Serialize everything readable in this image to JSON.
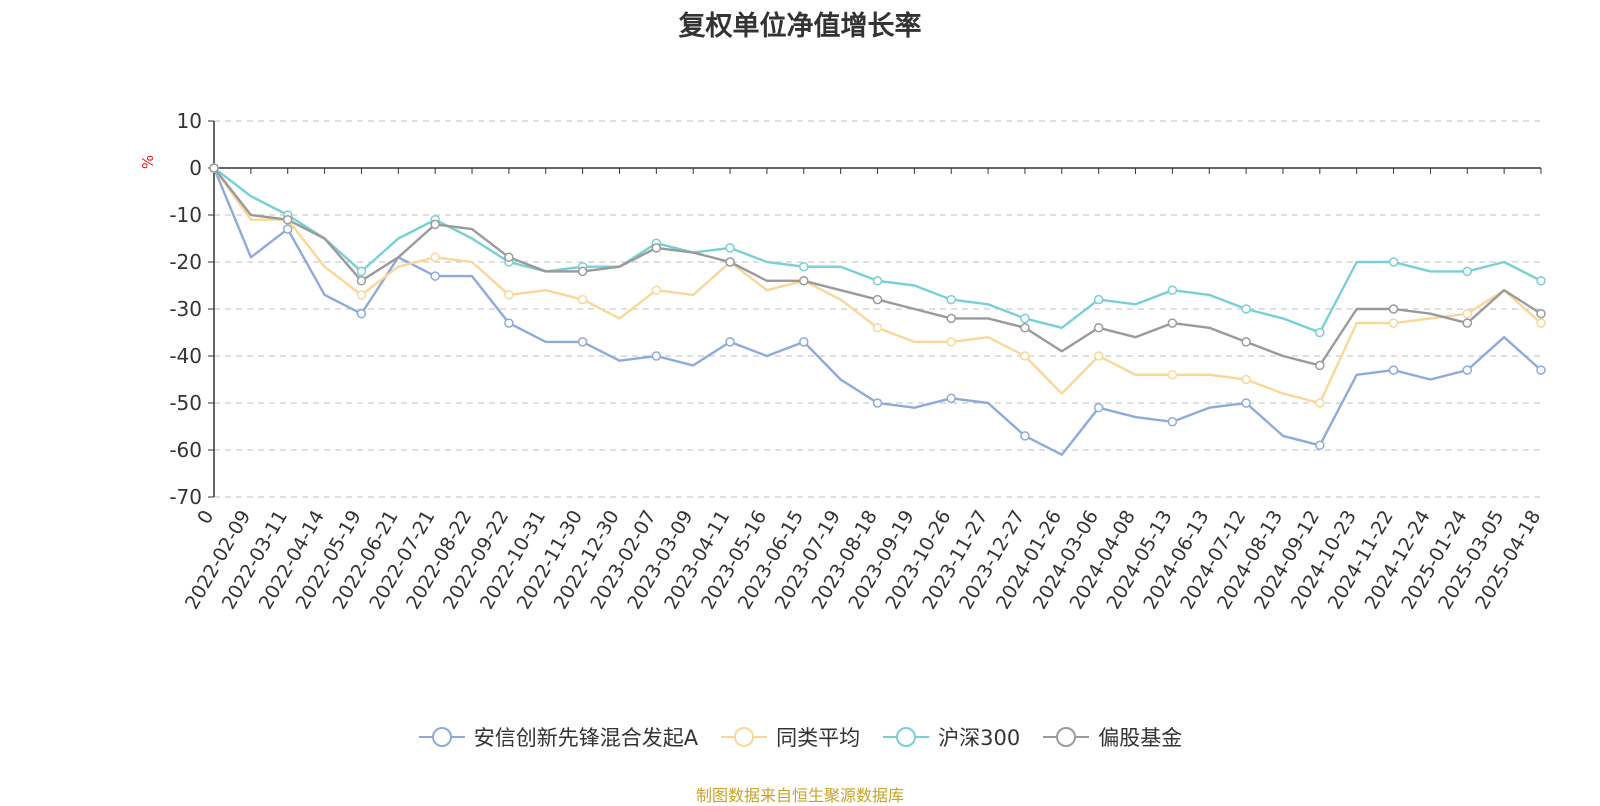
{
  "chart_data": {
    "type": "line",
    "title": "复权单位净值增长率",
    "ylabel": "%",
    "ylim": [
      -70,
      10
    ],
    "yticks": [
      10,
      0,
      -10,
      -20,
      -30,
      -40,
      -50,
      -60,
      -70
    ],
    "grid": true,
    "legend_position": "bottom",
    "x_tick_labels": [
      "0",
      "2022-02-09",
      "2022-03-11",
      "2022-04-14",
      "2022-05-19",
      "2022-06-21",
      "2022-07-21",
      "2022-08-22",
      "2022-09-22",
      "2022-10-31",
      "2022-11-30",
      "2022-12-30",
      "2023-02-07",
      "2023-03-09",
      "2023-04-11",
      "2023-05-16",
      "2023-06-15",
      "2023-07-19",
      "2023-08-18",
      "2023-09-19",
      "2023-10-26",
      "2023-11-27",
      "2023-12-27",
      "2024-01-26",
      "2024-03-06",
      "2024-04-08",
      "2024-05-13",
      "2024-06-13",
      "2024-07-12",
      "2024-08-13",
      "2024-09-12",
      "2024-10-23",
      "2024-11-22",
      "2024-12-24",
      "2025-01-24",
      "2025-03-05",
      "2025-04-18"
    ],
    "series": [
      {
        "name": "安信创新先锋混合发起A",
        "color": "#8eaadc",
        "values": [
          0,
          -19,
          -13,
          -27,
          -31,
          -19,
          -23,
          -23,
          -33,
          -37,
          -37,
          -41,
          -40,
          -42,
          -37,
          -40,
          -37,
          -45,
          -50,
          -51,
          -49,
          -50,
          -57,
          -61,
          -51,
          -53,
          -54,
          -51,
          -50,
          -57,
          -59,
          -44,
          -43,
          -45,
          -43,
          -36,
          -43
        ]
      },
      {
        "name": "同类平均",
        "color": "#f9d799",
        "values": [
          0,
          -11,
          -11,
          -21,
          -27,
          -21,
          -19,
          -20,
          -27,
          -26,
          -28,
          -32,
          -26,
          -27,
          -20,
          -26,
          -24,
          -28,
          -34,
          -37,
          -37,
          -36,
          -40,
          -48,
          -40,
          -44,
          -44,
          -44,
          -45,
          -48,
          -50,
          -33,
          -33,
          -32,
          -31,
          -26,
          -33
        ]
      },
      {
        "name": "沪深300",
        "color": "#78d0d4",
        "values": [
          0,
          -6,
          -10,
          -15,
          -22,
          -15,
          -11,
          -15,
          -20,
          -22,
          -21,
          -21,
          -16,
          -18,
          -17,
          -20,
          -21,
          -21,
          -24,
          -25,
          -28,
          -29,
          -32,
          -34,
          -28,
          -29,
          -26,
          -27,
          -30,
          -32,
          -35,
          -20,
          -20,
          -22,
          -22,
          -20,
          -24
        ]
      },
      {
        "name": "偏股基金",
        "color": "#9a9a9a",
        "values": [
          0,
          -10,
          -11,
          -15,
          -24,
          -19,
          -12,
          -13,
          -19,
          -22,
          -22,
          -21,
          -17,
          -18,
          -20,
          -24,
          -24,
          -26,
          -28,
          -30,
          -32,
          -32,
          -34,
          -39,
          -34,
          -36,
          -33,
          -34,
          -37,
          -40,
          -42,
          -30,
          -30,
          -31,
          -33,
          -26,
          -31
        ]
      }
    ]
  },
  "source": {
    "text": "制图数据来自恒生聚源数据库",
    "color": "#c9a227"
  },
  "axis": {
    "unit_color": "#e02020"
  }
}
